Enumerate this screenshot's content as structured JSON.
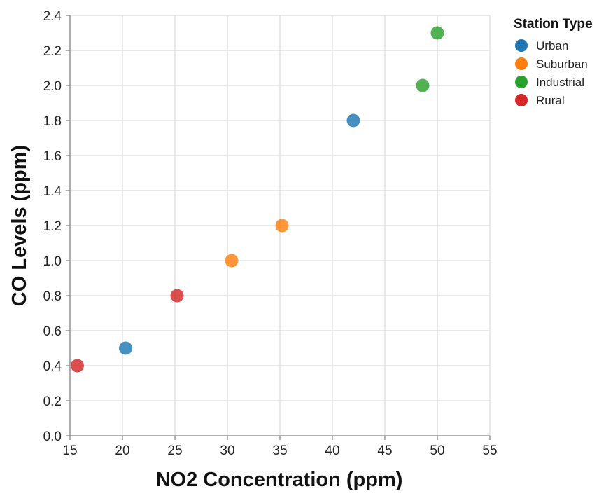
{
  "chart_data": {
    "type": "scatter",
    "xlabel": "NO2 Concentration (ppm)",
    "ylabel": "CO Levels (ppm)",
    "xlim": [
      15,
      55
    ],
    "ylim": [
      0,
      2.4
    ],
    "x_ticks": [
      "15",
      "20",
      "25",
      "30",
      "35",
      "40",
      "45",
      "50",
      "55"
    ],
    "y_ticks": [
      "0.0",
      "0.2",
      "0.4",
      "0.6",
      "0.8",
      "1.0",
      "1.2",
      "1.4",
      "1.6",
      "1.8",
      "2.0",
      "2.2",
      "2.4"
    ],
    "grid": true,
    "legend": {
      "title": "Station Type",
      "placement": "top-right",
      "entries": [
        {
          "label": "Urban",
          "color": "#1f77b4"
        },
        {
          "label": "Suburban",
          "color": "#ff7f0e"
        },
        {
          "label": "Industrial",
          "color": "#2ca02c"
        },
        {
          "label": "Rural",
          "color": "#d62728"
        }
      ]
    },
    "points": [
      {
        "x": 15.7,
        "y": 0.4,
        "group": "Rural"
      },
      {
        "x": 20.3,
        "y": 0.5,
        "group": "Urban"
      },
      {
        "x": 25.2,
        "y": 0.8,
        "group": "Rural"
      },
      {
        "x": 30.4,
        "y": 1.0,
        "group": "Suburban"
      },
      {
        "x": 35.2,
        "y": 1.2,
        "group": "Suburban"
      },
      {
        "x": 42.0,
        "y": 1.8,
        "group": "Urban"
      },
      {
        "x": 48.6,
        "y": 2.0,
        "group": "Industrial"
      },
      {
        "x": 50.0,
        "y": 2.3,
        "group": "Industrial"
      }
    ]
  }
}
